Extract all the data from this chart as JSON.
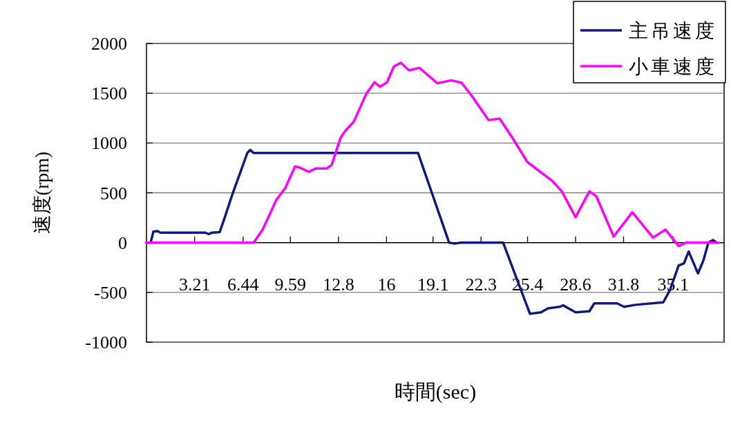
{
  "chart_data": {
    "type": "line",
    "xlabel": "時間(sec)",
    "ylabel": "速度(rpm)",
    "xlim": [
      0,
      38.5
    ],
    "xticks": [
      3.21,
      6.44,
      9.59,
      12.8,
      16,
      19.1,
      22.3,
      25.4,
      28.6,
      31.8,
      35.1
    ],
    "ylim": [
      -1000,
      2000
    ],
    "yticks": [
      -1000,
      -500,
      0,
      500,
      1000,
      1500,
      2000
    ],
    "grid": "y",
    "legend": "top right",
    "marker": "none",
    "line_style": "solid",
    "series": [
      {
        "name": "主吊速度",
        "color": "#0d1a7a",
        "x": [
          0,
          0.28,
          0.46,
          0.74,
          0.92,
          3.92,
          4.15,
          4.38,
          4.88,
          5.2,
          5.76,
          6.22,
          6.72,
          6.91,
          7.14,
          18.1,
          19.02,
          20.17,
          20.54,
          20.96,
          23.77,
          25.56,
          26.3,
          26.76,
          27.54,
          27.77,
          28.6,
          29.52,
          29.85,
          31.37,
          31.83,
          32.61,
          34.45,
          34.91,
          35.47,
          35.82,
          36.14,
          36.76,
          37.13,
          37.45,
          37.77,
          38.0
        ],
        "values": [
          0,
          0,
          110,
          115,
          100,
          100,
          85,
          100,
          105,
          245,
          500,
          690,
          900,
          930,
          900,
          900,
          500,
          0,
          -10,
          0,
          0,
          -715,
          -700,
          -660,
          -645,
          -630,
          -700,
          -690,
          -610,
          -610,
          -645,
          -625,
          -600,
          -470,
          -230,
          -210,
          -90,
          -310,
          -175,
          0,
          25,
          0
        ]
      },
      {
        "name": "小車速度",
        "color": "#ff00ff",
        "x": [
          0,
          7.14,
          7.74,
          8.66,
          9.26,
          9.9,
          10.18,
          10.82,
          11.29,
          12.02,
          12.34,
          12.94,
          13.27,
          13.82,
          14.65,
          15.2,
          15.57,
          16.03,
          16.49,
          16.95,
          17.5,
          18.19,
          19.39,
          20.31,
          21.0,
          21.7,
          22.8,
          23.54,
          24.46,
          25.38,
          26.16,
          27.08,
          27.68,
          28.6,
          29.52,
          29.98,
          31.14,
          32.38,
          33.76,
          34.59,
          35.47,
          35.97,
          38.14
        ],
        "values": [
          0,
          0,
          130,
          430,
          550,
          765,
          755,
          710,
          745,
          745,
          780,
          1055,
          1125,
          1215,
          1495,
          1610,
          1565,
          1610,
          1770,
          1805,
          1730,
          1755,
          1600,
          1630,
          1605,
          1470,
          1230,
          1245,
          1035,
          810,
          720,
          615,
          515,
          255,
          515,
          465,
          60,
          305,
          50,
          130,
          -35,
          0,
          0
        ]
      }
    ]
  }
}
